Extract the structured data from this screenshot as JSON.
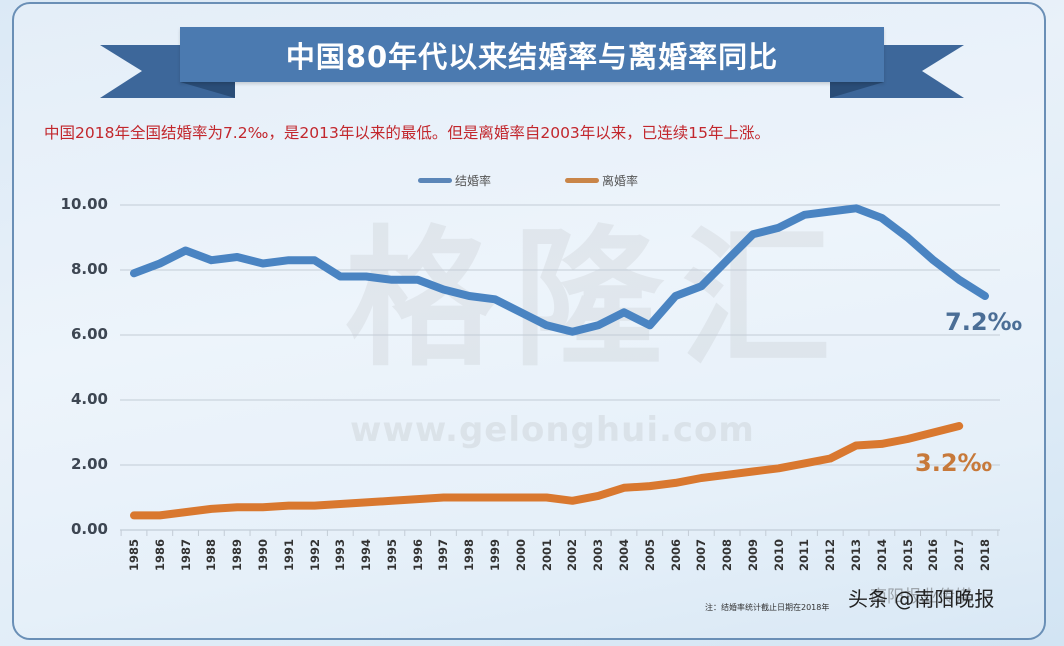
{
  "header": {
    "title": "中国80年代以来结婚率与离婚率同比",
    "subtitle": "中国2018年全国结婚率为7.2‰，是2013年以来的最低。但是离婚率自2003年以来，已连续15年上涨。"
  },
  "legend": {
    "marriage": "结婚率",
    "divorce": "离婚率"
  },
  "annotations": {
    "marriage_end": "7.2‰",
    "divorce_end": "3.2‰"
  },
  "watermark": {
    "logo_text": "格隆汇",
    "url_text": "www.gelonghui.com"
  },
  "footer": {
    "note": "注：结婚率统计截止日期在2018年",
    "source_overlay": "南阳报业传媒",
    "source": "头条 @南阳晚报"
  },
  "colors": {
    "marriage": "#4a84c2",
    "divorce": "#d9782f",
    "banner": "#4b7ab0",
    "subtitle": "#c2272d"
  },
  "chart_data": {
    "type": "line",
    "title": "中国80年代以来结婚率与离婚率同比",
    "subtitle": "中国2018年全国结婚率为7.2‰，是2013年以来的最低。但是离婚率自2003年以来，已连续15年上涨。",
    "xlabel": "",
    "ylabel": "",
    "ylim": [
      0,
      10
    ],
    "yticks": [
      "0.00",
      "2.00",
      "4.00",
      "6.00",
      "8.00",
      "10.00"
    ],
    "grid": true,
    "legend_position": "top",
    "x": [
      "1985",
      "1986",
      "1987",
      "1988",
      "1989",
      "1990",
      "1991",
      "1992",
      "1993",
      "1994",
      "1995",
      "1996",
      "1997",
      "1998",
      "1999",
      "2000",
      "2001",
      "2002",
      "2003",
      "2004",
      "2005",
      "2006",
      "2007",
      "2008",
      "2009",
      "2010",
      "2011",
      "2012",
      "2013",
      "2014",
      "2015",
      "2016",
      "2017",
      "2018"
    ],
    "series": [
      {
        "name": "结婚率",
        "color": "#4a84c2",
        "values": [
          7.9,
          8.2,
          8.6,
          8.3,
          8.4,
          8.2,
          8.3,
          8.3,
          7.8,
          7.8,
          7.7,
          7.7,
          7.4,
          7.2,
          7.1,
          6.7,
          6.3,
          6.1,
          6.3,
          6.7,
          6.3,
          7.2,
          7.5,
          8.3,
          9.1,
          9.3,
          9.7,
          9.8,
          9.9,
          9.6,
          9.0,
          8.3,
          7.7,
          7.2
        ]
      },
      {
        "name": "离婚率",
        "color": "#d9782f",
        "values": [
          0.45,
          0.45,
          0.55,
          0.65,
          0.7,
          0.7,
          0.75,
          0.75,
          0.8,
          0.85,
          0.9,
          0.95,
          1.0,
          1.0,
          1.0,
          1.0,
          1.0,
          0.9,
          1.05,
          1.3,
          1.35,
          1.45,
          1.6,
          1.7,
          1.8,
          1.9,
          2.05,
          2.2,
          2.6,
          2.65,
          2.8,
          3.0,
          3.2,
          null
        ]
      }
    ],
    "annotations": [
      {
        "text": "7.2‰",
        "series": "结婚率",
        "x": "2018"
      },
      {
        "text": "3.2‰",
        "series": "离婚率",
        "x": "2017"
      }
    ]
  }
}
